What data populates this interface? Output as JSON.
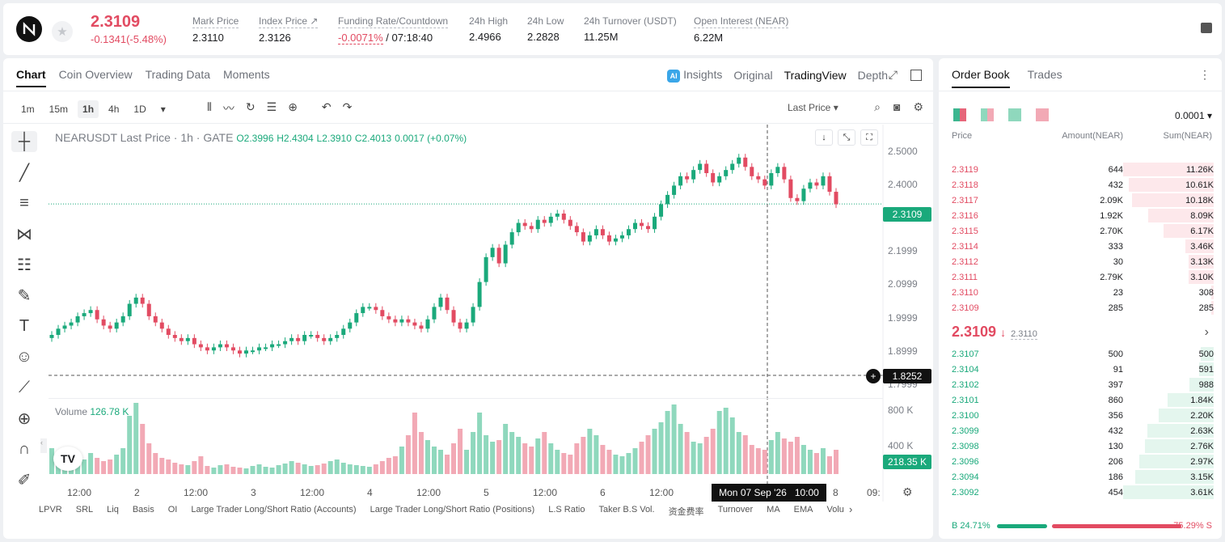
{
  "header": {
    "last_price": "2.3109",
    "change": "-0.1341(-5.48%)",
    "stats": [
      {
        "label": "Mark Price",
        "value": "2.3110"
      },
      {
        "label": "Index Price ↗",
        "value": "2.3126"
      },
      {
        "label": "Funding Rate/Countdown",
        "value_red": "-0.0071%",
        "value": " / 07:18:40"
      },
      {
        "label": "24h High",
        "value": "2.4966"
      },
      {
        "label": "24h Low",
        "value": "2.2828"
      },
      {
        "label": "24h Turnover (USDT)",
        "value": "11.25M"
      },
      {
        "label": "Open Interest (NEAR)",
        "value": "6.22M"
      }
    ]
  },
  "chart_tabs": [
    "Chart",
    "Coin Overview",
    "Trading Data",
    "Moments"
  ],
  "view_tabs": [
    "Insights",
    "Original",
    "TradingView",
    "Depth"
  ],
  "intervals": [
    "1m",
    "15m",
    "1h",
    "4h",
    "1D"
  ],
  "price_type": "Last Price",
  "legend": {
    "symbol": "NEARUSDT Last Price · 1h · GATE",
    "o": "O2.3996",
    "h": "H2.4304",
    "l": "L2.3910",
    "c": "C2.4013",
    "chg": "0.0017 (+0.07%)"
  },
  "volume_legend": {
    "label": "Volume",
    "value": "126.78 K"
  },
  "price_axis": [
    "2.5000",
    "2.4000",
    "2.1999",
    "2.0999",
    "1.9999",
    "1.8999",
    "1.7999"
  ],
  "price_tags": {
    "last": "2.3109",
    "cursor": "1.8252"
  },
  "volume_axis": [
    "800 K",
    "400 K"
  ],
  "volume_tag": "218.35 K",
  "x_axis": [
    "12:00",
    "2",
    "12:00",
    "3",
    "12:00",
    "4",
    "12:00",
    "5",
    "12:00",
    "6",
    "12:00",
    "8",
    "09:"
  ],
  "time_tag": {
    "date": "Mon 07 Sep '26",
    "time": "10:00"
  },
  "indicators": [
    "LPVR",
    "SRL",
    "Liq",
    "Basis",
    "OI",
    "Large Trader Long/Short Ratio (Accounts)",
    "Large Trader Long/Short Ratio (Positions)",
    "L.S Ratio",
    "Taker B.S Vol.",
    "资金费率",
    "Turnover",
    "MA",
    "EMA",
    "Volu"
  ],
  "chart_data": {
    "type": "candlestick",
    "symbol": "NEARUSDT",
    "interval": "1h",
    "y_range": [
      1.76,
      2.54
    ],
    "closes": [
      1.89,
      1.91,
      1.92,
      1.93,
      1.95,
      1.96,
      1.97,
      1.94,
      1.92,
      1.91,
      1.93,
      1.95,
      1.99,
      2.01,
      1.99,
      1.95,
      1.93,
      1.91,
      1.89,
      1.88,
      1.87,
      1.88,
      1.86,
      1.85,
      1.84,
      1.85,
      1.86,
      1.85,
      1.84,
      1.83,
      1.84,
      1.84,
      1.85,
      1.85,
      1.86,
      1.86,
      1.87,
      1.88,
      1.87,
      1.89,
      1.89,
      1.88,
      1.87,
      1.88,
      1.89,
      1.91,
      1.93,
      1.96,
      1.98,
      1.98,
      1.97,
      1.95,
      1.94,
      1.93,
      1.94,
      1.93,
      1.92,
      1.91,
      1.94,
      1.98,
      2.01,
      1.97,
      1.93,
      1.91,
      1.93,
      1.98,
      2.06,
      2.14,
      2.17,
      2.12,
      2.18,
      2.22,
      2.25,
      2.24,
      2.23,
      2.26,
      2.25,
      2.27,
      2.28,
      2.26,
      2.24,
      2.22,
      2.19,
      2.21,
      2.23,
      2.21,
      2.19,
      2.2,
      2.21,
      2.23,
      2.25,
      2.24,
      2.23,
      2.27,
      2.31,
      2.34,
      2.37,
      2.4,
      2.39,
      2.42,
      2.44,
      2.41,
      2.38,
      2.4,
      2.42,
      2.44,
      2.46,
      2.43,
      2.4,
      2.39,
      2.37,
      2.41,
      2.43,
      2.39,
      2.33,
      2.32,
      2.36,
      2.38,
      2.37,
      2.4,
      2.35,
      2.31
    ],
    "volume_k": [
      320,
      140,
      120,
      220,
      240,
      180,
      260,
      200,
      160,
      180,
      240,
      320,
      720,
      880,
      620,
      380,
      260,
      200,
      180,
      140,
      120,
      110,
      160,
      220,
      100,
      80,
      110,
      120,
      90,
      80,
      70,
      100,
      120,
      90,
      80,
      110,
      130,
      160,
      140,
      120,
      100,
      110,
      130,
      160,
      180,
      140,
      120,
      110,
      100,
      90,
      120,
      160,
      200,
      220,
      340,
      480,
      760,
      520,
      420,
      340,
      300,
      240,
      380,
      560,
      300,
      520,
      760,
      480,
      400,
      420,
      620,
      520,
      460,
      380,
      340,
      440,
      520,
      380,
      300,
      260,
      240,
      380,
      460,
      560,
      480,
      360,
      300,
      240,
      220,
      260,
      320,
      400,
      480,
      560,
      640,
      780,
      860,
      620,
      520,
      400,
      380,
      460,
      560,
      780,
      820,
      700,
      520,
      480,
      360,
      320,
      300,
      420,
      520,
      440,
      400,
      460,
      360,
      300,
      260,
      320,
      220,
      300,
      360,
      420,
      380,
      440
    ]
  },
  "orderbook": {
    "tabs": [
      "Order Book",
      "Trades"
    ],
    "precision": "0.0001",
    "headers": {
      "price": "Price",
      "amount": "Amount(NEAR)",
      "sum": "Sum(NEAR)"
    },
    "asks": [
      {
        "price": "2.3119",
        "amount": "644",
        "sum": "11.26K",
        "depth": 1.0
      },
      {
        "price": "2.3118",
        "amount": "432",
        "sum": "10.61K",
        "depth": 0.94
      },
      {
        "price": "2.3117",
        "amount": "2.09K",
        "sum": "10.18K",
        "depth": 0.9
      },
      {
        "price": "2.3116",
        "amount": "1.92K",
        "sum": "8.09K",
        "depth": 0.72
      },
      {
        "price": "2.3115",
        "amount": "2.70K",
        "sum": "6.17K",
        "depth": 0.55
      },
      {
        "price": "2.3114",
        "amount": "333",
        "sum": "3.46K",
        "depth": 0.31
      },
      {
        "price": "2.3112",
        "amount": "30",
        "sum": "3.13K",
        "depth": 0.28
      },
      {
        "price": "2.3111",
        "amount": "2.79K",
        "sum": "3.10K",
        "depth": 0.28
      },
      {
        "price": "2.3110",
        "amount": "23",
        "sum": "308",
        "depth": 0.03
      },
      {
        "price": "2.3109",
        "amount": "285",
        "sum": "285",
        "depth": 0.03
      }
    ],
    "mid_price": "2.3109",
    "mid_arrow": "↓",
    "mark_price": "2.3110",
    "bids": [
      {
        "price": "2.3107",
        "amount": "500",
        "sum": "500",
        "depth": 0.14
      },
      {
        "price": "2.3104",
        "amount": "91",
        "sum": "591",
        "depth": 0.16
      },
      {
        "price": "2.3102",
        "amount": "397",
        "sum": "988",
        "depth": 0.27
      },
      {
        "price": "2.3101",
        "amount": "860",
        "sum": "1.84K",
        "depth": 0.51
      },
      {
        "price": "2.3100",
        "amount": "356",
        "sum": "2.20K",
        "depth": 0.61
      },
      {
        "price": "2.3099",
        "amount": "432",
        "sum": "2.63K",
        "depth": 0.73
      },
      {
        "price": "2.3098",
        "amount": "130",
        "sum": "2.76K",
        "depth": 0.76
      },
      {
        "price": "2.3096",
        "amount": "206",
        "sum": "2.97K",
        "depth": 0.82
      },
      {
        "price": "2.3094",
        "amount": "186",
        "sum": "3.15K",
        "depth": 0.87
      },
      {
        "price": "2.3092",
        "amount": "454",
        "sum": "3.61K",
        "depth": 1.0
      }
    ],
    "buy_ratio": "B 24.71%",
    "sell_ratio": "75.29% S"
  },
  "colors": {
    "up": "#1aa97b",
    "down": "#e24b62",
    "up_vol": "#8fd8bd",
    "down_vol": "#f2a9b5"
  }
}
